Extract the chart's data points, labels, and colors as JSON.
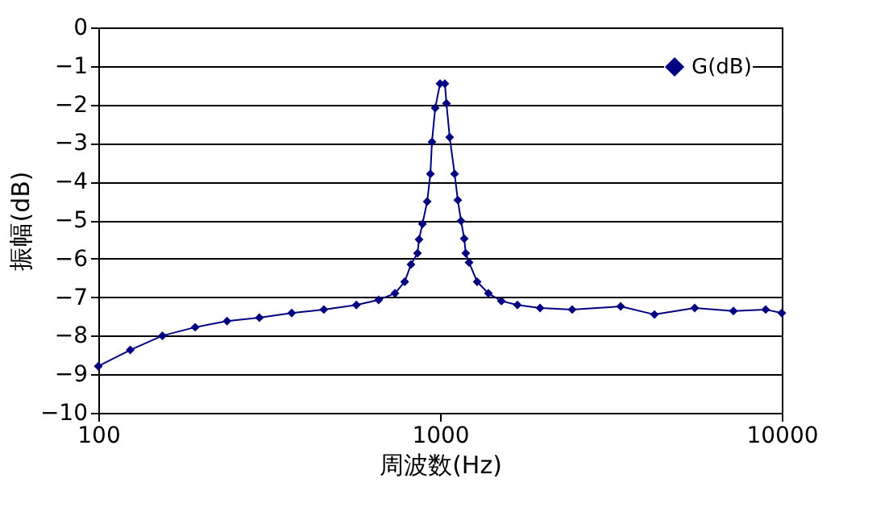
{
  "chart_data": {
    "type": "line",
    "xlabel": "周波数(Hz)",
    "ylabel": "振幅(dB)",
    "x": [
      100,
      124,
      154,
      192,
      238,
      296,
      368,
      457,
      569,
      661,
      738,
      788,
      822,
      859,
      868,
      888,
      917,
      937,
      947,
      968,
      1000,
      1033,
      1044,
      1067,
      1103,
      1127,
      1152,
      1177,
      1189,
      1216,
      1284,
      1385,
      1512,
      1684,
      1962,
      2436,
      3377,
      4241,
      5562,
      7219,
      8970,
      10000
    ],
    "series": [
      {
        "name": "G(dB)",
        "color": "#000080",
        "values": [
          -8.79,
          -8.37,
          -8.0,
          -7.78,
          -7.62,
          -7.53,
          -7.41,
          -7.32,
          -7.2,
          -7.07,
          -6.9,
          -6.6,
          -6.15,
          -5.86,
          -5.5,
          -5.1,
          -4.52,
          -3.8,
          -2.97,
          -2.09,
          -1.46,
          -1.46,
          -1.97,
          -2.85,
          -3.8,
          -4.48,
          -5.02,
          -5.48,
          -5.86,
          -6.1,
          -6.6,
          -6.9,
          -7.1,
          -7.2,
          -7.28,
          -7.32,
          -7.24,
          -7.45,
          -7.28,
          -7.36,
          -7.32,
          -7.41
        ]
      }
    ],
    "xlim": [
      100,
      10000
    ],
    "xticks": [
      100,
      1000,
      10000
    ],
    "log": "x",
    "ylim": [
      -10,
      0
    ],
    "yticks": [
      0,
      -1,
      -2,
      -3,
      -4,
      -5,
      -6,
      -7,
      -8,
      -9,
      -10
    ],
    "grid": "y",
    "legend": "top right",
    "marker": "diamond",
    "line_style": "solid"
  }
}
